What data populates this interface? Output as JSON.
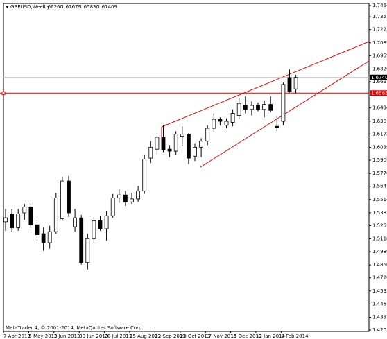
{
  "header": {
    "symbol": "GBPUSD,Weekly",
    "open": "1.66260",
    "high": "1.67679",
    "low": "1.65830",
    "close": "1.67409"
  },
  "footer": "MetaTrader 4, © 2001-2014, MetaQuotes Software Corp.",
  "chart_data": {
    "type": "candlestick",
    "categories": [
      "7 Apr 2013",
      null,
      null,
      null,
      "5 May 2013",
      null,
      null,
      null,
      "2 Jun 2013",
      null,
      null,
      null,
      "30 Jun 2013",
      null,
      null,
      null,
      "28 Jul 2013",
      null,
      null,
      null,
      "25 Aug 2013",
      null,
      null,
      null,
      "22 Sep 2013",
      null,
      null,
      null,
      "20 Oct 2013",
      null,
      null,
      null,
      "17 Nov 2013",
      null,
      null,
      null,
      "15 Dec 2013",
      null,
      null,
      null,
      "12 Jan 2014",
      null,
      null,
      null,
      "9 Feb 2014",
      null,
      null
    ],
    "open": [
      1.529,
      1.537,
      1.523,
      1.538,
      1.544,
      1.526,
      1.517,
      1.508,
      1.519,
      1.532,
      1.57,
      1.524,
      1.533,
      1.488,
      1.512,
      1.53,
      1.522,
      1.535,
      1.553,
      1.556,
      1.549,
      1.552,
      1.56,
      1.593,
      1.602,
      1.614,
      1.602,
      1.6,
      1.615,
      1.617,
      1.595,
      1.604,
      1.61,
      1.623,
      1.632,
      1.626,
      1.629,
      1.636,
      1.646,
      1.642,
      1.646,
      1.642,
      1.647,
      1.625,
      1.63,
      1.674,
      1.6626
    ],
    "high": [
      1.542,
      1.542,
      1.542,
      1.547,
      1.548,
      1.531,
      1.523,
      1.525,
      1.558,
      1.574,
      1.575,
      1.542,
      1.536,
      1.517,
      1.534,
      1.535,
      1.54,
      1.557,
      1.562,
      1.56,
      1.558,
      1.565,
      1.596,
      1.61,
      1.616,
      1.626,
      1.606,
      1.62,
      1.625,
      1.618,
      1.608,
      1.613,
      1.626,
      1.638,
      1.634,
      1.633,
      1.642,
      1.653,
      1.655,
      1.65,
      1.649,
      1.651,
      1.655,
      1.635,
      1.669,
      1.682,
      1.67679
    ],
    "low": [
      1.52,
      1.519,
      1.52,
      1.531,
      1.523,
      1.51,
      1.5,
      1.502,
      1.517,
      1.53,
      1.534,
      1.519,
      1.486,
      1.481,
      1.508,
      1.52,
      1.51,
      1.533,
      1.548,
      1.545,
      1.547,
      1.549,
      1.557,
      1.588,
      1.596,
      1.599,
      1.594,
      1.596,
      1.605,
      1.587,
      1.59,
      1.594,
      1.606,
      1.619,
      1.626,
      1.623,
      1.625,
      1.632,
      1.638,
      1.636,
      1.64,
      1.634,
      1.639,
      1.62,
      1.626,
      1.659,
      1.6583
    ],
    "close": [
      1.533,
      1.523,
      1.537,
      1.544,
      1.526,
      1.516,
      1.508,
      1.519,
      1.553,
      1.57,
      1.538,
      1.533,
      1.488,
      1.512,
      1.53,
      1.522,
      1.535,
      1.553,
      1.556,
      1.549,
      1.552,
      1.56,
      1.592,
      1.604,
      1.614,
      1.601,
      1.6,
      1.617,
      1.617,
      1.593,
      1.604,
      1.61,
      1.623,
      1.632,
      1.63,
      1.63,
      1.638,
      1.648,
      1.642,
      1.646,
      1.642,
      1.647,
      1.641,
      1.624,
      1.667,
      1.66,
      1.67409
    ],
    "ylim": [
      1.4188,
      1.7485
    ],
    "yticks": [
      1.74645,
      1.73515,
      {
        "value": 1.7222,
        "label": "1.72220"
      },
      {
        "value": 1.7089,
        "label": "1.70890"
      },
      1.69595,
      1.68265,
      {
        "value": 1.6697,
        "label": "1.66970"
      },
      1.64345,
      1.63015,
      {
        "value": 1.6172,
        "label": "1.61720"
      },
      {
        "value": 1.6039,
        "label": "1.60390"
      },
      1.59095,
      1.57765,
      {
        "value": 1.5647,
        "label": "1.56470"
      },
      {
        "value": 1.5514,
        "label": "1.55140"
      },
      {
        "value": 1.5381,
        "label": "1.53810"
      },
      1.52515,
      1.51185,
      {
        "value": 1.4989,
        "label": "1.49890"
      },
      {
        "value": 1.4856,
        "label": "1.48560"
      },
      1.47265,
      1.45935,
      {
        "value": 1.4464,
        "label": "1.44640"
      },
      {
        "value": 1.4331,
        "label": "1.43310"
      },
      1.42015
    ],
    "current_price": {
      "value": 1.67409,
      "label": "1.67409"
    },
    "hline": {
      "value": 1.65838,
      "label": "1.65838",
      "color": "#e00000"
    }
  }
}
